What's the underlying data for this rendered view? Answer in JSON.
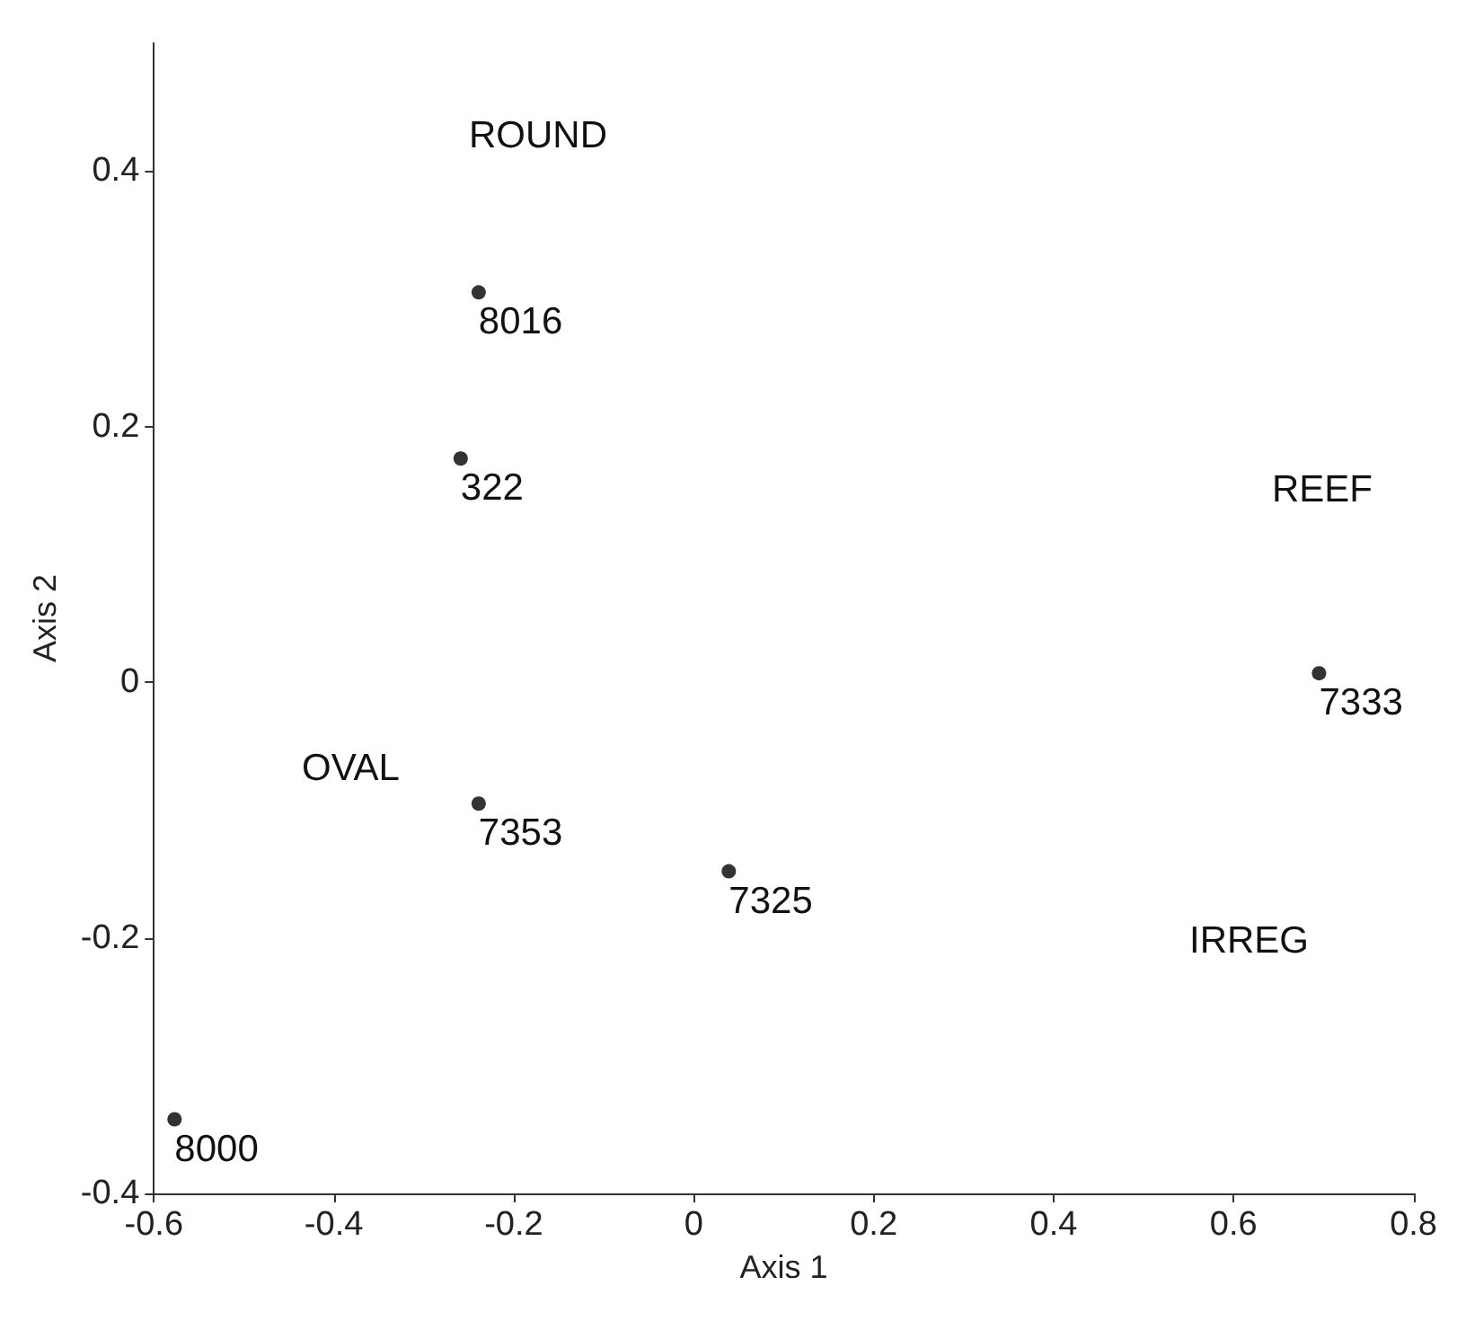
{
  "chart_data": {
    "type": "scatter",
    "xlabel": "Axis 1",
    "ylabel": "Axis 2",
    "x": [
      -0.239,
      -0.259,
      -0.239,
      0.039,
      -0.577,
      0.695
    ],
    "values": [
      0.305,
      0.175,
      -0.095,
      -0.148,
      -0.342,
      0.007
    ],
    "color": "#000000",
    "marker": "circle",
    "grid": false,
    "xlim": [
      -0.6,
      0.8
    ],
    "xticks": [
      -0.6,
      -0.4,
      -0.2,
      0,
      0.2,
      0.4,
      0.6,
      0.8
    ],
    "ylim": [
      -0.4,
      0.5
    ],
    "yticks": [
      -0.4,
      -0.2,
      0,
      0.2,
      0.4
    ],
    "annotations": [
      {
        "text": "8016",
        "x": -0.239,
        "y": 0.305
      },
      {
        "text": "322",
        "x": -0.259,
        "y": 0.175
      },
      {
        "text": "7353",
        "x": -0.239,
        "y": -0.095
      },
      {
        "text": "7325",
        "x": 0.039,
        "y": -0.148
      },
      {
        "text": "8000",
        "x": -0.577,
        "y": -0.342
      },
      {
        "text": "7333",
        "x": 0.695,
        "y": 0.007
      },
      "ROUND",
      "OVAL",
      "REEF",
      "IRREG"
    ]
  }
}
